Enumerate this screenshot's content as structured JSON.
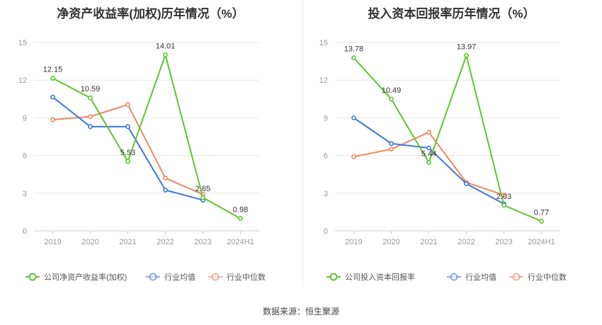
{
  "source_label": "数据来源：恒生聚源",
  "chart_data": [
    {
      "type": "line",
      "title": "净资产收益率(加权)历年情况（%）",
      "categories": [
        "2019",
        "2020",
        "2021",
        "2022",
        "2023",
        "2024H1"
      ],
      "ylim": [
        0,
        15
      ],
      "yticks": [
        "0",
        "3",
        "6",
        "9",
        "12",
        "15"
      ],
      "series": [
        {
          "name": "公司净资产收益率(加权)",
          "color": "#5fc52e",
          "values": [
            12.15,
            10.59,
            5.53,
            14.01,
            2.65,
            0.98
          ],
          "labels": [
            "12.15",
            "10.59",
            "5.53",
            "14.01",
            "2.65",
            "0.98"
          ]
        },
        {
          "name": "行业均值",
          "color": "#3d78d8",
          "values": [
            10.65,
            8.3,
            8.3,
            3.25,
            2.45,
            null
          ]
        },
        {
          "name": "行业中位数",
          "color": "#f08660",
          "values": [
            8.85,
            9.1,
            10.05,
            4.2,
            2.9,
            null
          ]
        }
      ]
    },
    {
      "type": "line",
      "title": "投入资本回报率历年情况（%）",
      "categories": [
        "2019",
        "2020",
        "2021",
        "2022",
        "2023",
        "2024H1"
      ],
      "ylim": [
        0,
        15
      ],
      "yticks": [
        "0",
        "3",
        "6",
        "9",
        "12",
        "15"
      ],
      "series": [
        {
          "name": "公司投入资本回报率",
          "color": "#5fc52e",
          "values": [
            13.78,
            10.49,
            5.44,
            13.97,
            2.03,
            0.77
          ],
          "labels": [
            "13.78",
            "10.49",
            "5.44",
            "13.97",
            "2.03",
            "0.77"
          ]
        },
        {
          "name": "行业均值",
          "color": "#3d78d8",
          "values": [
            9.0,
            6.95,
            6.6,
            3.75,
            2.15,
            null
          ]
        },
        {
          "name": "行业中位数",
          "color": "#f08660",
          "values": [
            5.9,
            6.5,
            7.85,
            3.85,
            2.85,
            null
          ]
        }
      ]
    }
  ]
}
